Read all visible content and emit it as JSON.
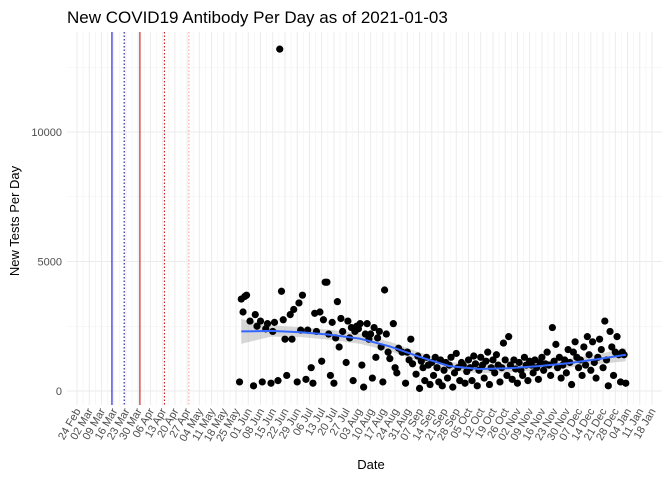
{
  "chart_data": {
    "type": "scatter",
    "title": "New COVID19 Antibody Per Day as of 2021-01-03",
    "xlabel": "Date",
    "ylabel": "New Tests Per Day",
    "xlim": [
      "2020-02-24",
      "2021-01-18"
    ],
    "ylim": [
      -500,
      13500
    ],
    "y_ticks": [
      0,
      5000,
      10000
    ],
    "x_ticks": [
      "24 Feb",
      "02 Mar",
      "09 Mar",
      "16 Mar",
      "23 Mar",
      "30 Mar",
      "06 Apr",
      "13 Apr",
      "20 Apr",
      "27 Apr",
      "04 May",
      "11 May",
      "18 May",
      "25 May",
      "01 Jun",
      "08 Jun",
      "15 Jun",
      "22 Jun",
      "29 Jun",
      "06 Jul",
      "13 Jul",
      "20 Jul",
      "27 Jul",
      "03 Aug",
      "10 Aug",
      "17 Aug",
      "24 Aug",
      "31 Aug",
      "07 Sep",
      "14 Sep",
      "21 Sep",
      "28 Sep",
      "05 Oct",
      "12 Oct",
      "19 Oct",
      "26 Oct",
      "02 Nov",
      "09 Nov",
      "16 Nov",
      "23 Nov",
      "30 Nov",
      "07 Dec",
      "14 Dec",
      "21 Dec",
      "28 Dec",
      "04 Jan",
      "11 Jan",
      "18 Jan"
    ],
    "grid": true,
    "legend": "none",
    "point_color": "#000000",
    "smooth_color": "#3366ff",
    "band_color": "#bdbdbd",
    "vlines": [
      {
        "date": "2020-03-15",
        "color": "#0000cc",
        "style": "solid"
      },
      {
        "date": "2020-03-22",
        "color": "#00008b",
        "style": "dotted"
      },
      {
        "date": "2020-03-31",
        "color": "#cc0000",
        "style": "solid"
      },
      {
        "date": "2020-04-14",
        "color": "#cc0000",
        "style": "dotted"
      },
      {
        "date": "2020-04-28",
        "color": "#ff9999",
        "style": "dotted"
      }
    ],
    "smooth": {
      "x": [
        "2020-05-28",
        "2020-06-14",
        "2020-07-01",
        "2020-07-18",
        "2020-08-04",
        "2020-08-21",
        "2020-09-07",
        "2020-09-24",
        "2020-10-11",
        "2020-10-28",
        "2020-11-14",
        "2020-12-01",
        "2020-12-18",
        "2021-01-03"
      ],
      "y": [
        2300,
        2320,
        2270,
        2170,
        2020,
        1720,
        1320,
        960,
        850,
        880,
        960,
        1070,
        1230,
        1400
      ],
      "lower": [
        1820,
        2100,
        2080,
        1980,
        1820,
        1540,
        1150,
        800,
        690,
        720,
        800,
        900,
        1040,
        1150
      ],
      "upper": [
        2780,
        2540,
        2460,
        2360,
        2220,
        1900,
        1490,
        1120,
        1010,
        1040,
        1120,
        1240,
        1420,
        1650
      ]
    },
    "points": [
      {
        "x": "2020-05-27",
        "y": 350
      },
      {
        "x": "2020-05-28",
        "y": 3550
      },
      {
        "x": "2020-05-29",
        "y": 3050
      },
      {
        "x": "2020-05-30",
        "y": 3650
      },
      {
        "x": "2020-05-31",
        "y": 3700
      },
      {
        "x": "2020-06-02",
        "y": 2700
      },
      {
        "x": "2020-06-04",
        "y": 200
      },
      {
        "x": "2020-06-05",
        "y": 2950
      },
      {
        "x": "2020-06-06",
        "y": 2500
      },
      {
        "x": "2020-06-08",
        "y": 2700
      },
      {
        "x": "2020-06-09",
        "y": 350
      },
      {
        "x": "2020-06-11",
        "y": 2400
      },
      {
        "x": "2020-06-12",
        "y": 2600
      },
      {
        "x": "2020-06-14",
        "y": 300
      },
      {
        "x": "2020-06-15",
        "y": 2300
      },
      {
        "x": "2020-06-16",
        "y": 2650
      },
      {
        "x": "2020-06-18",
        "y": 400
      },
      {
        "x": "2020-06-19",
        "y": 13200
      },
      {
        "x": "2020-06-20",
        "y": 3850
      },
      {
        "x": "2020-06-21",
        "y": 2750
      },
      {
        "x": "2020-06-22",
        "y": 2000
      },
      {
        "x": "2020-06-23",
        "y": 600
      },
      {
        "x": "2020-06-25",
        "y": 2950
      },
      {
        "x": "2020-06-26",
        "y": 2000
      },
      {
        "x": "2020-06-27",
        "y": 3150
      },
      {
        "x": "2020-06-29",
        "y": 350
      },
      {
        "x": "2020-06-30",
        "y": 3400
      },
      {
        "x": "2020-07-01",
        "y": 2350
      },
      {
        "x": "2020-07-02",
        "y": 3700
      },
      {
        "x": "2020-07-04",
        "y": 450
      },
      {
        "x": "2020-07-05",
        "y": 2350
      },
      {
        "x": "2020-07-07",
        "y": 900
      },
      {
        "x": "2020-07-08",
        "y": 300
      },
      {
        "x": "2020-07-09",
        "y": 3000
      },
      {
        "x": "2020-07-10",
        "y": 2300
      },
      {
        "x": "2020-07-12",
        "y": 3050
      },
      {
        "x": "2020-07-13",
        "y": 1150
      },
      {
        "x": "2020-07-14",
        "y": 2750
      },
      {
        "x": "2020-07-15",
        "y": 4200
      },
      {
        "x": "2020-07-16",
        "y": 4200
      },
      {
        "x": "2020-07-17",
        "y": 2200
      },
      {
        "x": "2020-07-18",
        "y": 600
      },
      {
        "x": "2020-07-19",
        "y": 2650
      },
      {
        "x": "2020-07-20",
        "y": 300
      },
      {
        "x": "2020-07-21",
        "y": 2050
      },
      {
        "x": "2020-07-22",
        "y": 3450
      },
      {
        "x": "2020-07-23",
        "y": 1700
      },
      {
        "x": "2020-07-24",
        "y": 2800
      },
      {
        "x": "2020-07-25",
        "y": 2300
      },
      {
        "x": "2020-07-27",
        "y": 1100
      },
      {
        "x": "2020-07-28",
        "y": 2700
      },
      {
        "x": "2020-07-29",
        "y": 2050
      },
      {
        "x": "2020-07-30",
        "y": 2450
      },
      {
        "x": "2020-07-31",
        "y": 400
      },
      {
        "x": "2020-08-01",
        "y": 2300
      },
      {
        "x": "2020-08-02",
        "y": 2500
      },
      {
        "x": "2020-08-03",
        "y": 2400
      },
      {
        "x": "2020-08-04",
        "y": 2600
      },
      {
        "x": "2020-08-05",
        "y": 1000
      },
      {
        "x": "2020-08-06",
        "y": 150
      },
      {
        "x": "2020-08-07",
        "y": 2200
      },
      {
        "x": "2020-08-08",
        "y": 2600
      },
      {
        "x": "2020-08-09",
        "y": 2000
      },
      {
        "x": "2020-08-10",
        "y": 2200
      },
      {
        "x": "2020-08-11",
        "y": 500
      },
      {
        "x": "2020-08-12",
        "y": 2450
      },
      {
        "x": "2020-08-13",
        "y": 1300
      },
      {
        "x": "2020-08-14",
        "y": 2050
      },
      {
        "x": "2020-08-15",
        "y": 2300
      },
      {
        "x": "2020-08-16",
        "y": 1700
      },
      {
        "x": "2020-08-17",
        "y": 350
      },
      {
        "x": "2020-08-18",
        "y": 3900
      },
      {
        "x": "2020-08-19",
        "y": 2200
      },
      {
        "x": "2020-08-20",
        "y": 1500
      },
      {
        "x": "2020-08-21",
        "y": 1250
      },
      {
        "x": "2020-08-23",
        "y": 2600
      },
      {
        "x": "2020-08-24",
        "y": 900
      },
      {
        "x": "2020-08-25",
        "y": 700
      },
      {
        "x": "2020-08-26",
        "y": 1650
      },
      {
        "x": "2020-08-28",
        "y": 1500
      },
      {
        "x": "2020-08-30",
        "y": 300
      },
      {
        "x": "2020-08-31",
        "y": 1500
      },
      {
        "x": "2020-09-01",
        "y": 1200
      },
      {
        "x": "2020-09-02",
        "y": 2000
      },
      {
        "x": "2020-09-03",
        "y": 1050
      },
      {
        "x": "2020-09-05",
        "y": 650
      },
      {
        "x": "2020-09-06",
        "y": 1350
      },
      {
        "x": "2020-09-07",
        "y": 100
      },
      {
        "x": "2020-09-08",
        "y": 1150
      },
      {
        "x": "2020-09-09",
        "y": 900
      },
      {
        "x": "2020-09-10",
        "y": 400
      },
      {
        "x": "2020-09-11",
        "y": 1300
      },
      {
        "x": "2020-09-12",
        "y": 1000
      },
      {
        "x": "2020-09-13",
        "y": 250
      },
      {
        "x": "2020-09-14",
        "y": 1100
      },
      {
        "x": "2020-09-15",
        "y": 600
      },
      {
        "x": "2020-09-16",
        "y": 1300
      },
      {
        "x": "2020-09-17",
        "y": 900
      },
      {
        "x": "2020-09-18",
        "y": 350
      },
      {
        "x": "2020-09-19",
        "y": 1200
      },
      {
        "x": "2020-09-20",
        "y": 200
      },
      {
        "x": "2020-09-21",
        "y": 800
      },
      {
        "x": "2020-09-22",
        "y": 1100
      },
      {
        "x": "2020-09-23",
        "y": 500
      },
      {
        "x": "2020-09-24",
        "y": 1000
      },
      {
        "x": "2020-09-25",
        "y": 1300
      },
      {
        "x": "2020-09-26",
        "y": 150
      },
      {
        "x": "2020-09-27",
        "y": 700
      },
      {
        "x": "2020-09-28",
        "y": 1450
      },
      {
        "x": "2020-09-29",
        "y": 900
      },
      {
        "x": "2020-09-30",
        "y": 400
      },
      {
        "x": "2020-10-01",
        "y": 1100
      },
      {
        "x": "2020-10-02",
        "y": 1000
      },
      {
        "x": "2020-10-03",
        "y": 300
      },
      {
        "x": "2020-10-04",
        "y": 750
      },
      {
        "x": "2020-10-05",
        "y": 1200
      },
      {
        "x": "2020-10-06",
        "y": 900
      },
      {
        "x": "2020-10-07",
        "y": 400
      },
      {
        "x": "2020-10-08",
        "y": 1350
      },
      {
        "x": "2020-10-09",
        "y": 1050
      },
      {
        "x": "2020-10-10",
        "y": 200
      },
      {
        "x": "2020-10-11",
        "y": 800
      },
      {
        "x": "2020-10-12",
        "y": 1300
      },
      {
        "x": "2020-10-13",
        "y": 1000
      },
      {
        "x": "2020-10-14",
        "y": 500
      },
      {
        "x": "2020-10-15",
        "y": 1150
      },
      {
        "x": "2020-10-16",
        "y": 1500
      },
      {
        "x": "2020-10-17",
        "y": 250
      },
      {
        "x": "2020-10-18",
        "y": 900
      },
      {
        "x": "2020-10-19",
        "y": 1200
      },
      {
        "x": "2020-10-20",
        "y": 700
      },
      {
        "x": "2020-10-21",
        "y": 1400
      },
      {
        "x": "2020-10-22",
        "y": 1000
      },
      {
        "x": "2020-10-23",
        "y": 350
      },
      {
        "x": "2020-10-24",
        "y": 900
      },
      {
        "x": "2020-10-25",
        "y": 1850
      },
      {
        "x": "2020-10-26",
        "y": 1200
      },
      {
        "x": "2020-10-27",
        "y": 600
      },
      {
        "x": "2020-10-28",
        "y": 2100
      },
      {
        "x": "2020-10-29",
        "y": 1000
      },
      {
        "x": "2020-10-30",
        "y": 450
      },
      {
        "x": "2020-10-31",
        "y": 1200
      },
      {
        "x": "2020-11-01",
        "y": 850
      },
      {
        "x": "2020-11-02",
        "y": 300
      },
      {
        "x": "2020-11-03",
        "y": 1100
      },
      {
        "x": "2020-11-04",
        "y": 800
      },
      {
        "x": "2020-11-05",
        "y": 600
      },
      {
        "x": "2020-11-06",
        "y": 1300
      },
      {
        "x": "2020-11-07",
        "y": 1000
      },
      {
        "x": "2020-11-08",
        "y": 400
      },
      {
        "x": "2020-11-09",
        "y": 1150
      },
      {
        "x": "2020-11-10",
        "y": 1000
      },
      {
        "x": "2020-11-11",
        "y": 700
      },
      {
        "x": "2020-11-12",
        "y": 1200
      },
      {
        "x": "2020-11-13",
        "y": 900
      },
      {
        "x": "2020-11-14",
        "y": 450
      },
      {
        "x": "2020-11-15",
        "y": 1100
      },
      {
        "x": "2020-11-16",
        "y": 1300
      },
      {
        "x": "2020-11-17",
        "y": 800
      },
      {
        "x": "2020-11-18",
        "y": 1050
      },
      {
        "x": "2020-11-19",
        "y": 1500
      },
      {
        "x": "2020-11-20",
        "y": 1000
      },
      {
        "x": "2020-11-21",
        "y": 600
      },
      {
        "x": "2020-11-22",
        "y": 2450
      },
      {
        "x": "2020-11-23",
        "y": 1150
      },
      {
        "x": "2020-11-24",
        "y": 1800
      },
      {
        "x": "2020-11-25",
        "y": 900
      },
      {
        "x": "2020-11-26",
        "y": 1300
      },
      {
        "x": "2020-11-27",
        "y": 500
      },
      {
        "x": "2020-11-28",
        "y": 1000
      },
      {
        "x": "2020-11-29",
        "y": 1200
      },
      {
        "x": "2020-11-30",
        "y": 700
      },
      {
        "x": "2020-12-01",
        "y": 1600
      },
      {
        "x": "2020-12-02",
        "y": 1100
      },
      {
        "x": "2020-12-03",
        "y": 250
      },
      {
        "x": "2020-12-04",
        "y": 1500
      },
      {
        "x": "2020-12-05",
        "y": 1900
      },
      {
        "x": "2020-12-06",
        "y": 1300
      },
      {
        "x": "2020-12-07",
        "y": 900
      },
      {
        "x": "2020-12-08",
        "y": 1200
      },
      {
        "x": "2020-12-09",
        "y": 600
      },
      {
        "x": "2020-12-10",
        "y": 1700
      },
      {
        "x": "2020-12-11",
        "y": 1000
      },
      {
        "x": "2020-12-12",
        "y": 2100
      },
      {
        "x": "2020-12-13",
        "y": 1400
      },
      {
        "x": "2020-12-14",
        "y": 800
      },
      {
        "x": "2020-12-15",
        "y": 1900
      },
      {
        "x": "2020-12-16",
        "y": 1100
      },
      {
        "x": "2020-12-17",
        "y": 500
      },
      {
        "x": "2020-12-18",
        "y": 1300
      },
      {
        "x": "2020-12-19",
        "y": 2000
      },
      {
        "x": "2020-12-20",
        "y": 1600
      },
      {
        "x": "2020-12-21",
        "y": 900
      },
      {
        "x": "2020-12-22",
        "y": 2700
      },
      {
        "x": "2020-12-23",
        "y": 1200
      },
      {
        "x": "2020-12-24",
        "y": 200
      },
      {
        "x": "2020-12-25",
        "y": 2300
      },
      {
        "x": "2020-12-26",
        "y": 1700
      },
      {
        "x": "2020-12-27",
        "y": 600
      },
      {
        "x": "2020-12-28",
        "y": 1500
      },
      {
        "x": "2020-12-29",
        "y": 2100
      },
      {
        "x": "2020-12-30",
        "y": 1400
      },
      {
        "x": "2020-12-31",
        "y": 350
      },
      {
        "x": "2021-01-01",
        "y": 1500
      },
      {
        "x": "2021-01-02",
        "y": 1400
      },
      {
        "x": "2021-01-03",
        "y": 300
      }
    ]
  }
}
